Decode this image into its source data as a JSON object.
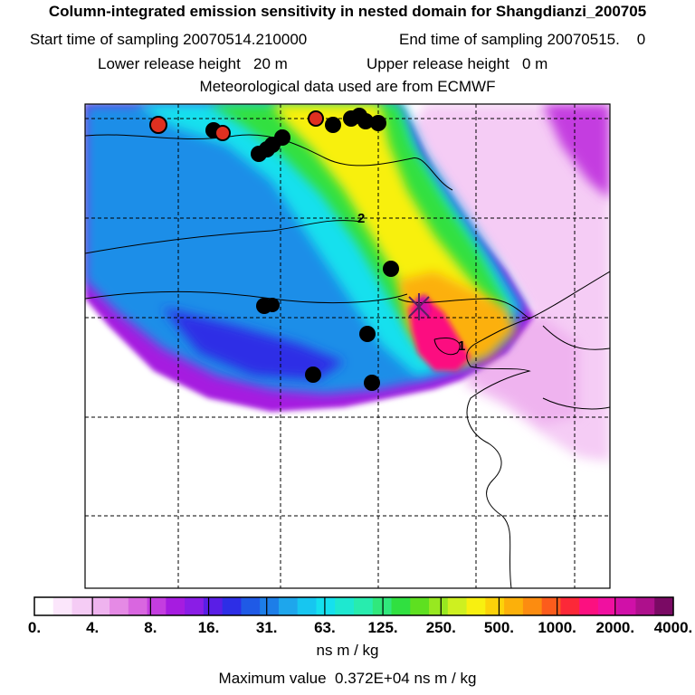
{
  "header": {
    "title": "Column-integrated emission sensitivity in nested domain for Shangdianzi_200705",
    "start_label": "Start time of sampling",
    "start_value": "20070514.210000",
    "end_label": "End time of sampling",
    "end_value": "20070515.",
    "end_suffix": "0",
    "lower_label": "Lower release height",
    "lower_value": "20 m",
    "upper_label": "Upper release height",
    "upper_value": "0 m",
    "met_line": "Meteorological data used are from ECMWF"
  },
  "map": {
    "contour_label_1": "1",
    "contour_label_2": "2"
  },
  "colorbar": {
    "colors": [
      "#ffffff",
      "#fbe6fb",
      "#f5ccf5",
      "#efb3ef",
      "#e58ae5",
      "#d966e0",
      "#c43de0",
      "#a61ce0",
      "#8a1de6",
      "#5a1ee6",
      "#2d2ee6",
      "#1f5ae6",
      "#1d7ee8",
      "#1ea6ec",
      "#17c6f0",
      "#15e0ee",
      "#1ee8d0",
      "#28ecae",
      "#30e87c",
      "#30e040",
      "#5ee020",
      "#98e820",
      "#cef020",
      "#f8f010",
      "#fcd20a",
      "#fcb00a",
      "#fc8c10",
      "#fc5c1c",
      "#fc2838",
      "#fc1080",
      "#f010a0",
      "#d010a8",
      "#ae108c",
      "#7a0a64"
    ],
    "tick_labels": [
      "0.",
      "4.",
      "8.",
      "16.",
      "31.",
      "63.",
      "125.",
      "250.",
      "500.",
      "1000.",
      "2000.",
      "4000."
    ],
    "unit": "ns m / kg"
  },
  "footer": {
    "max_label": "Maximum value",
    "max_value": "0.372E+04",
    "max_unit": "ns m / kg"
  }
}
